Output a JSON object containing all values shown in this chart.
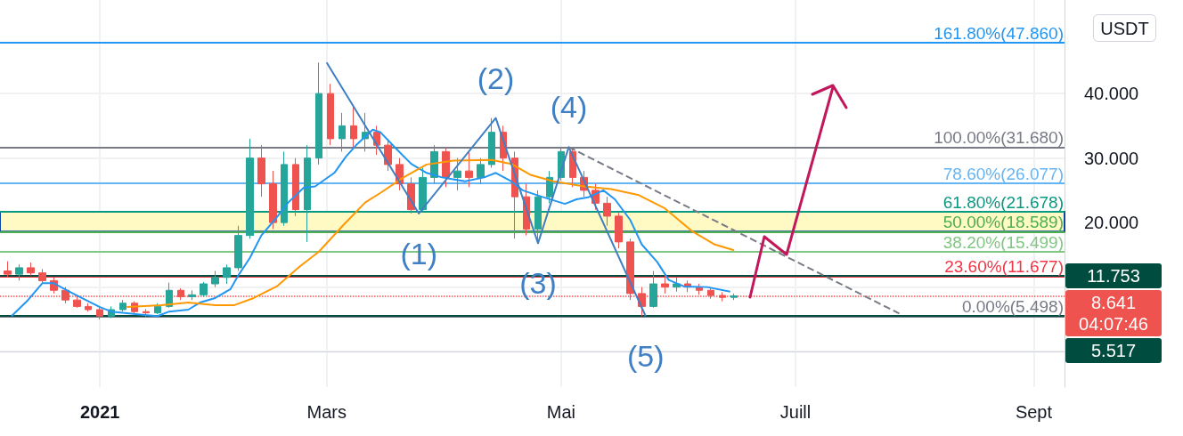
{
  "chart_data": {
    "type": "candlestick",
    "ylabel": "USDT",
    "x": [
      "2020-12-08",
      "2020-12-11",
      "2020-12-14",
      "2020-12-17",
      "2020-12-20",
      "2020-12-23",
      "2020-12-26",
      "2020-12-29",
      "2021-01-01",
      "2021-01-04",
      "2021-01-07",
      "2021-01-10",
      "2021-01-13",
      "2021-01-16",
      "2021-01-19",
      "2021-01-22",
      "2021-01-25",
      "2021-01-28",
      "2021-01-31",
      "2021-02-03",
      "2021-02-06",
      "2021-02-09",
      "2021-02-12",
      "2021-02-15",
      "2021-02-18",
      "2021-02-21",
      "2021-02-24",
      "2021-02-27",
      "2021-03-02",
      "2021-03-05",
      "2021-03-08",
      "2021-03-11",
      "2021-03-14",
      "2021-03-17",
      "2021-03-20",
      "2021-03-23",
      "2021-03-26",
      "2021-03-29",
      "2021-04-01",
      "2021-04-04",
      "2021-04-07",
      "2021-04-10",
      "2021-04-13",
      "2021-04-16",
      "2021-04-19",
      "2021-04-22",
      "2021-04-25",
      "2021-04-28",
      "2021-05-01",
      "2021-05-04",
      "2021-05-07",
      "2021-05-10",
      "2021-05-13",
      "2021-05-16",
      "2021-05-19",
      "2021-05-22",
      "2021-05-25",
      "2021-05-28",
      "2021-05-31",
      "2021-06-03",
      "2021-06-06",
      "2021-06-09",
      "2021-06-12",
      "2021-06-15"
    ],
    "ohlc": [
      [
        12.5,
        14,
        11.5,
        12
      ],
      [
        12,
        13.5,
        11,
        13
      ],
      [
        13,
        13.8,
        11.8,
        12.2
      ],
      [
        12.2,
        12.8,
        10.5,
        11
      ],
      [
        11,
        11.5,
        9,
        9.5
      ],
      [
        9.5,
        10,
        7.5,
        8
      ],
      [
        8,
        8.6,
        6.8,
        7
      ],
      [
        7,
        7.5,
        6.2,
        6.5
      ],
      [
        6.5,
        6.8,
        5,
        5.5
      ],
      [
        5.5,
        7,
        5.2,
        6.5
      ],
      [
        6.5,
        8,
        6.2,
        7.5
      ],
      [
        7.5,
        7.8,
        5.8,
        6.2
      ],
      [
        6.2,
        6.6,
        5.3,
        6
      ],
      [
        6,
        7.5,
        5.8,
        7
      ],
      [
        7,
        10.7,
        6.8,
        9.5
      ],
      [
        9.5,
        9.8,
        8,
        8.5
      ],
      [
        8.5,
        9.5,
        8,
        8.8
      ],
      [
        8.8,
        10.8,
        8.5,
        10.5
      ],
      [
        10.5,
        12.5,
        10,
        11.5
      ],
      [
        11.5,
        13.5,
        10.5,
        13
      ],
      [
        13,
        19.5,
        12.5,
        18
      ],
      [
        18,
        33,
        17.5,
        30
      ],
      [
        30,
        32,
        24,
        26
      ],
      [
        26,
        28,
        19,
        20
      ],
      [
        20,
        31,
        19.5,
        29
      ],
      [
        29,
        30,
        21,
        22
      ],
      [
        22,
        32,
        17,
        30
      ],
      [
        30,
        44.8,
        29,
        40
      ],
      [
        40,
        41.5,
        32,
        33
      ],
      [
        33,
        37,
        31,
        35
      ],
      [
        35,
        38,
        31.5,
        33
      ],
      [
        33,
        37,
        31,
        34
      ],
      [
        34,
        35,
        30.5,
        32
      ],
      [
        32,
        33,
        28,
        29
      ],
      [
        29,
        30,
        25,
        26
      ],
      [
        26,
        27,
        21.4,
        22
      ],
      [
        22,
        28.5,
        21.8,
        27
      ],
      [
        27,
        32,
        26,
        31
      ],
      [
        31,
        31.5,
        25.5,
        27
      ],
      [
        27,
        30,
        25,
        28
      ],
      [
        28,
        31,
        25.5,
        27
      ],
      [
        27,
        30,
        26,
        29
      ],
      [
        29,
        36.2,
        28.5,
        34
      ],
      [
        34,
        35,
        28,
        30
      ],
      [
        30,
        31,
        17.5,
        24
      ],
      [
        24,
        26,
        18,
        19
      ],
      [
        19,
        25,
        16.8,
        24
      ],
      [
        24,
        28,
        23,
        27
      ],
      [
        27,
        31.7,
        26.5,
        31
      ],
      [
        31,
        31.5,
        25.5,
        27
      ],
      [
        27,
        28,
        24,
        25
      ],
      [
        25,
        26,
        22,
        23
      ],
      [
        23,
        24,
        19.5,
        21
      ],
      [
        21,
        21.5,
        16,
        17
      ],
      [
        17,
        17.5,
        8,
        9
      ],
      [
        9,
        10,
        5.5,
        7
      ],
      [
        7,
        12.5,
        6.8,
        10.5
      ],
      [
        10.5,
        12,
        9,
        10
      ],
      [
        10,
        11.5,
        9.3,
        10.5
      ],
      [
        10.5,
        11,
        9.2,
        10
      ],
      [
        10,
        10.5,
        8.8,
        9.5
      ],
      [
        9.5,
        9.8,
        8.2,
        8.7
      ],
      [
        8.7,
        9.2,
        7.8,
        8.4
      ],
      [
        8.4,
        9,
        8,
        8.641
      ]
    ],
    "colors": [
      "#ef5350",
      "#26a69a",
      "#ef5350",
      "#ef5350",
      "#ef5350",
      "#ef5350",
      "#ef5350",
      "#ef5350",
      "#ef5350",
      "#26a69a",
      "#26a69a",
      "#ef5350",
      "#ef5350",
      "#26a69a",
      "#26a69a",
      "#ef5350",
      "#26a69a",
      "#26a69a",
      "#26a69a",
      "#26a69a",
      "#26a69a",
      "#26a69a",
      "#ef5350",
      "#ef5350",
      "#26a69a",
      "#ef5350",
      "#26a69a",
      "#26a69a",
      "#ef5350",
      "#26a69a",
      "#ef5350",
      "#26a69a",
      "#ef5350",
      "#ef5350",
      "#ef5350",
      "#ef5350",
      "#26a69a",
      "#26a69a",
      "#ef5350",
      "#26a69a",
      "#ef5350",
      "#26a69a",
      "#26a69a",
      "#ef5350",
      "#ef5350",
      "#ef5350",
      "#26a69a",
      "#26a69a",
      "#26a69a",
      "#ef5350",
      "#ef5350",
      "#ef5350",
      "#ef5350",
      "#ef5350",
      "#ef5350",
      "#ef5350",
      "#26a69a",
      "#ef5350",
      "#26a69a",
      "#ef5350",
      "#ef5350",
      "#ef5350",
      "#ef5350",
      "#26a69a"
    ],
    "series": [
      {
        "type": "line",
        "color": "#2196f3",
        "x": [
          "2020-12-09",
          "2020-12-13",
          "2020-12-17",
          "2020-12-20",
          "2020-12-25",
          "2021-01-01",
          "2021-01-04",
          "2021-01-12",
          "2021-01-16",
          "2021-01-19",
          "2021-01-24",
          "2021-01-27",
          "2021-01-31",
          "2021-02-04",
          "2021-02-06",
          "2021-02-09",
          "2021-02-12",
          "2021-02-16",
          "2021-02-19",
          "2021-02-23",
          "2021-02-26",
          "2021-03-03",
          "2021-03-06",
          "2021-03-09",
          "2021-03-13",
          "2021-03-15",
          "2021-03-19",
          "2021-03-23",
          "2021-03-27",
          "2021-03-31",
          "2021-04-06",
          "2021-04-11",
          "2021-04-14",
          "2021-04-18",
          "2021-04-21",
          "2021-04-26",
          "2021-05-02",
          "2021-05-05",
          "2021-05-08",
          "2021-05-12",
          "2021-05-15",
          "2021-05-19",
          "2021-05-22",
          "2021-05-26",
          "2021-05-29",
          "2021-06-02",
          "2021-06-08",
          "2021-06-14"
        ],
        "values": [
          5.5,
          7.8,
          10.6,
          10.6,
          9,
          6.9,
          6.2,
          5.7,
          5.5,
          6.2,
          6.5,
          7.6,
          8.3,
          9.7,
          11.8,
          14.5,
          18,
          20.8,
          23.1,
          25.4,
          25.6,
          27.7,
          30.2,
          32.2,
          34.4,
          34,
          31.5,
          29.1,
          27.7,
          27,
          26.4,
          27,
          27.7,
          26.4,
          25,
          24,
          22.9,
          23.6,
          23.9,
          25,
          23.6,
          20.4,
          16.6,
          13.9,
          11.1,
          10.1,
          10,
          9.3
        ]
      },
      {
        "type": "line",
        "color": "#ff9800",
        "x": [
          "2021-01-08",
          "2021-01-17",
          "2021-01-24",
          "2021-01-31",
          "2021-02-05",
          "2021-02-10",
          "2021-02-16",
          "2021-02-22",
          "2021-02-27",
          "2021-03-05",
          "2021-03-11",
          "2021-03-15",
          "2021-03-21",
          "2021-03-27",
          "2021-04-03",
          "2021-04-13",
          "2021-04-18",
          "2021-04-23",
          "2021-04-29",
          "2021-05-07",
          "2021-05-14",
          "2021-05-21",
          "2021-05-28",
          "2021-06-04",
          "2021-06-10",
          "2021-06-15"
        ],
        "values": [
          6.9,
          7.2,
          7.6,
          7.2,
          7.2,
          8.3,
          10.1,
          13.2,
          15.5,
          19.4,
          23.1,
          24.6,
          27,
          29,
          29.6,
          29.7,
          29.1,
          27.4,
          26.4,
          25.6,
          25.2,
          24.3,
          22.2,
          18.7,
          16.6,
          15.7
        ]
      },
      {
        "type": "line",
        "color": "#3f7fc4",
        "x": [
          "2021-03-01",
          "2021-03-25",
          "2021-04-14",
          "2021-04-25",
          "2021-05-03",
          "2021-05-23"
        ],
        "values": [
          44.8,
          21.4,
          36.2,
          16.8,
          31.7,
          5.5
        ]
      },
      {
        "type": "line",
        "color": "#787b86",
        "line_style": "dashed",
        "x": [
          "2021-05-03",
          "2021-07-28"
        ],
        "values": [
          31.7,
          5.9
        ]
      }
    ],
    "xlim": [
      "2020-12-06",
      "2021-09-09"
    ],
    "xticks": [
      {
        "value": "2021-01-01",
        "label": "2021"
      },
      {
        "value": "2021-03-01",
        "label": "Mars"
      },
      {
        "value": "2021-05-01",
        "label": "Mai"
      },
      {
        "value": "2021-07-01",
        "label": "Juill"
      },
      {
        "value": "2021-09-01",
        "label": "Sept"
      }
    ],
    "ylim": [
      -5.5,
      54.5
    ],
    "yticks": [
      {
        "value": 0,
        "label": null
      },
      {
        "value": 10,
        "label": null
      },
      {
        "value": 20,
        "label": "20.000"
      },
      {
        "value": 30,
        "label": "30.000"
      },
      {
        "value": 40,
        "label": "40.000"
      }
    ],
    "grid": true,
    "marker": "none",
    "ref_lines": [
      {
        "axis": "y",
        "value": 47.86,
        "label": "161.80%(47.860)",
        "color": "#2196f3"
      },
      {
        "axis": "y",
        "value": 31.68,
        "label": "100.00%(31.680)",
        "color": "#787b86"
      },
      {
        "axis": "y",
        "value": 26.077,
        "label": "78.60%(26.077)",
        "color": "#64b5f6"
      },
      {
        "axis": "y",
        "value": 21.678,
        "label": "61.80%(21.678)",
        "color": "#089981"
      },
      {
        "axis": "y",
        "value": 18.589,
        "label": "50.00%(18.589)",
        "color": "#4caf50"
      },
      {
        "axis": "y",
        "value": 15.499,
        "label": "38.20%(15.499)",
        "color": "#81c784"
      },
      {
        "axis": "y",
        "value": 11.677,
        "label": "23.60%(11.677)",
        "color": "#f23645"
      },
      {
        "axis": "y",
        "value": 5.498,
        "label": "0.00%(5.498)",
        "color": "#787b86"
      },
      {
        "axis": "y",
        "value": 11.753,
        "label": "11.753",
        "color": "#004d40",
        "line_style": "solid"
      },
      {
        "axis": "y",
        "value": 8.641,
        "label": "8.641",
        "color": "#ef5350",
        "line_style": "dotted"
      },
      {
        "axis": "y",
        "value": 5.517,
        "label": "5.517",
        "color": "#004d40",
        "line_style": "solid"
      }
    ],
    "bands": [
      {
        "axis": "y",
        "from": 18.589,
        "to": 21.678,
        "color": "#fff9c4"
      }
    ],
    "annotations": [
      {
        "text": "(1)",
        "x": "2021-03-25",
        "y": 21.4
      },
      {
        "text": "(2)",
        "x": "2021-04-14",
        "y": 36.2
      },
      {
        "text": "(3)",
        "x": "2021-04-25",
        "y": 16.8
      },
      {
        "text": "(4)",
        "x": "2021-05-03",
        "y": 31.7
      },
      {
        "text": "(5)",
        "x": "2021-05-23",
        "y": 5.5
      },
      "04:07:46"
    ]
  }
}
